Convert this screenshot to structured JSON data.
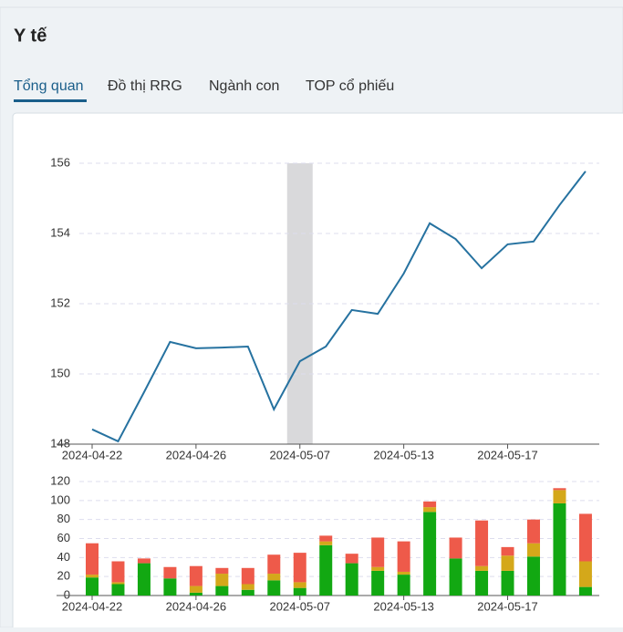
{
  "header": {
    "title": "Y tế"
  },
  "tabs": [
    "Tổng quan",
    "Đồ thị RRG",
    "Ngành con",
    "TOP cổ phiếu"
  ],
  "chart_data": [
    {
      "type": "line",
      "color": "#2672a0",
      "highlight_index": 8,
      "categories": [
        "2024-04-22",
        null,
        null,
        null,
        "2024-04-26",
        null,
        null,
        null,
        "2024-05-07",
        null,
        null,
        null,
        "2024-05-13",
        null,
        null,
        null,
        "2024-05-17",
        null,
        null,
        null
      ],
      "values": [
        148.42,
        148.08,
        149.48,
        150.91,
        150.73,
        150.75,
        150.78,
        148.99,
        150.36,
        150.78,
        151.82,
        151.71,
        152.86,
        154.29,
        153.84,
        153.01,
        153.69,
        153.77,
        154.81,
        155.77
      ],
      "ylim": [
        148,
        156
      ],
      "yticks": [
        148,
        150,
        152,
        154,
        156
      ],
      "grid": true
    },
    {
      "type": "bar",
      "stacked": true,
      "categories": [
        "2024-04-22",
        null,
        null,
        null,
        "2024-04-26",
        null,
        null,
        null,
        "2024-05-07",
        null,
        null,
        null,
        "2024-05-13",
        null,
        null,
        null,
        "2024-05-17",
        null,
        null,
        null
      ],
      "series": [
        {
          "color": "#12a812",
          "values": [
            19,
            12,
            34,
            18,
            3,
            10,
            6,
            16,
            8,
            53,
            34,
            26,
            22,
            88,
            39,
            26,
            26,
            41,
            97,
            9
          ]
        },
        {
          "color": "#d4a81a",
          "values": [
            3,
            2,
            0,
            0,
            7,
            13,
            6,
            7,
            6,
            4,
            0,
            4,
            3,
            5,
            0,
            5,
            16,
            14,
            14,
            27
          ]
        },
        {
          "color": "#ee5a4a",
          "values": [
            33,
            22,
            5,
            12,
            21,
            6,
            17,
            20,
            31,
            6,
            10,
            31,
            32,
            6,
            22,
            48,
            9,
            25,
            2,
            50
          ]
        }
      ],
      "ylim": [
        0,
        120
      ],
      "yticks": [
        0,
        20,
        40,
        60,
        80,
        100,
        120
      ],
      "grid": true
    }
  ]
}
